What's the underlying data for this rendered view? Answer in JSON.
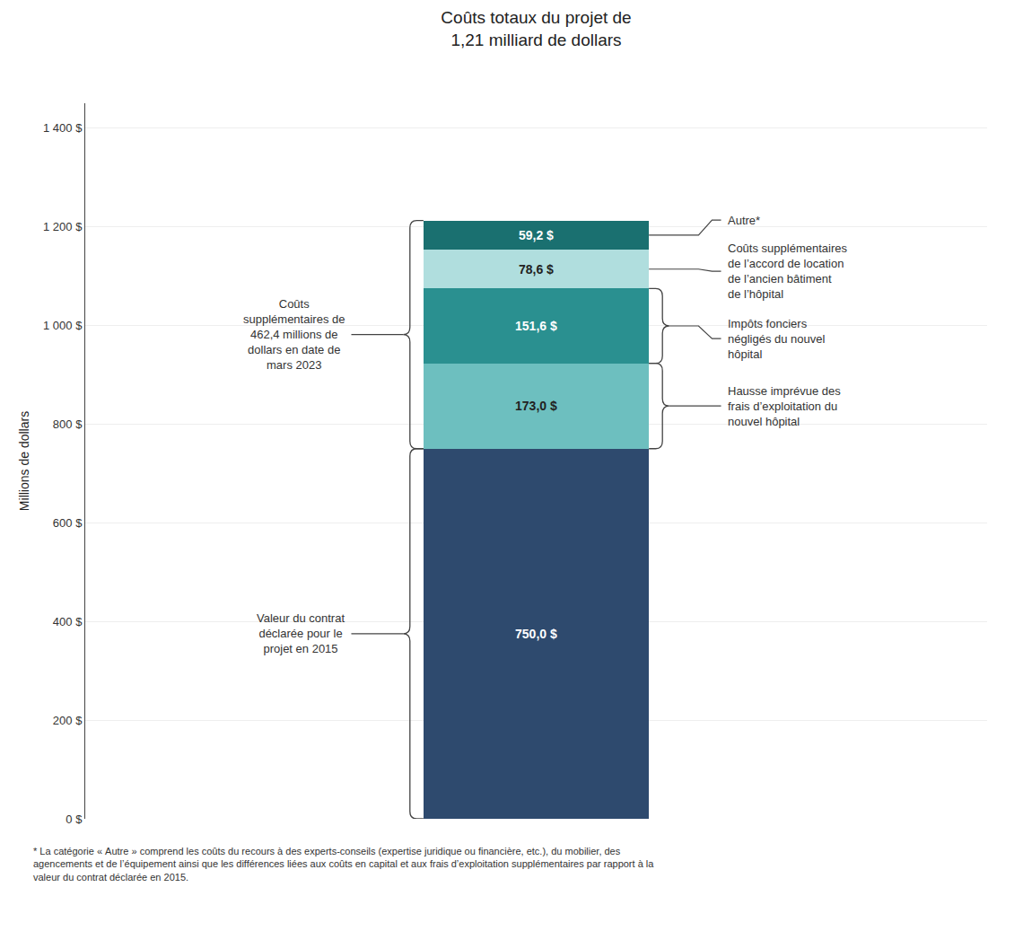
{
  "chart_data": {
    "type": "bar",
    "stacked": true,
    "data_labels": true,
    "grid": true,
    "title": "Coûts totaux du projet de\n1,21 milliard de dollars",
    "y_label": "Millions de dollars",
    "categories": [
      null
    ],
    "ylim": [
      0,
      1450
    ],
    "yticks": [
      {
        "value": 0,
        "label": "0 $"
      },
      {
        "value": 200,
        "label": "200 $"
      },
      {
        "value": 400,
        "label": "400 $"
      },
      {
        "value": 600,
        "label": "600 $"
      },
      {
        "value": 800,
        "label": "800 $"
      },
      {
        "value": 1000,
        "label": "1 000 $"
      },
      {
        "value": 1200,
        "label": "1 200 $"
      },
      {
        "value": 1400,
        "label": "1 400 $"
      }
    ],
    "series": [
      {
        "color": "#2e4a6e",
        "label_color": "white",
        "values": [
          750.0
        ],
        "value_labels": [
          "750,0 $"
        ]
      },
      {
        "color": "#6dbfbf",
        "label_color": "#222222",
        "values": [
          173.0
        ],
        "value_labels": [
          "173,0 $"
        ]
      },
      {
        "color": "#2a9090",
        "label_color": "white",
        "values": [
          151.6
        ],
        "value_labels": [
          "151,6 $"
        ]
      },
      {
        "color": "#b0dede",
        "label_color": "#222222",
        "values": [
          78.6
        ],
        "value_labels": [
          "78,6 $"
        ]
      },
      {
        "color": "#1a7070",
        "label_color": "white",
        "values": [
          59.2
        ],
        "value_labels": [
          "59,2 $"
        ]
      }
    ],
    "annotations": [
      {
        "text": "Valeur du contrat\ndéclarée pour le\nprojet en 2015",
        "side": "left",
        "segments": [
          0
        ]
      },
      {
        "text": "Coûts\nsupplémentaires de\n462,4 millions de\ndollars en date de\nmars 2023",
        "side": "left",
        "segments": [
          1,
          2,
          3,
          4
        ]
      },
      {
        "text": "Autre*",
        "side": "right",
        "segments": [
          4
        ]
      },
      {
        "text": "Coûts supplémentaires\nde l’accord de location\nde l’ancien bâtiment\nde l’hôpital",
        "side": "right",
        "segments": [
          3
        ]
      },
      {
        "text": "Impôts fonciers\nnégligés du nouvel\nhôpital",
        "side": "right",
        "segments": [
          2
        ]
      },
      {
        "text": "Hausse imprévue des\nfrais d’exploitation du\nnouvel hôpital",
        "side": "right",
        "segments": [
          1
        ]
      }
    ],
    "footnote": "* La catégorie « Autre » comprend les coûts du recours à des experts-conseils (expertise juridique ou financière, etc.), du mobilier, des\nagencements et de l’équipement ainsi que les différences liées aux coûts en capital et aux frais d’exploitation supplémentaires par rapport à la\nvaleur du contrat déclarée en 2015."
  }
}
